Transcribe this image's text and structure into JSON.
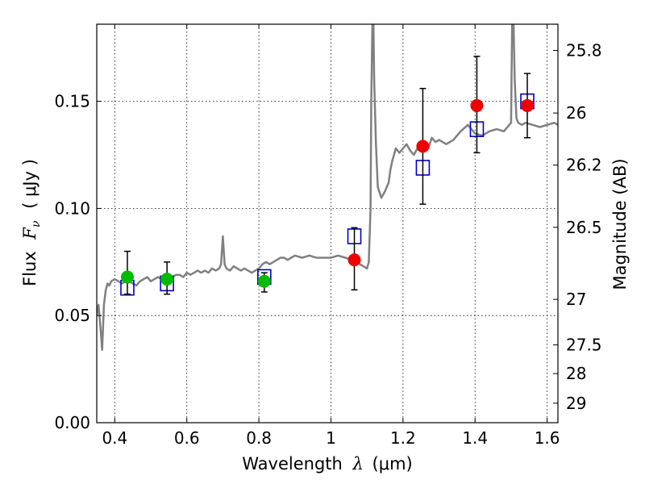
{
  "chart_data": {
    "type": "scatter",
    "xlabel_prefix": "Wavelength",
    "xlabel_symbol": "λ",
    "xlabel_unit": "(μm)",
    "ylabel_prefix": "Flux",
    "ylabel_symbol": "F",
    "ylabel_subscript": "ν",
    "ylabel_unit": "( μJy )",
    "y2label": "Magnitude (AB)",
    "xlim": [
      0.35,
      1.63
    ],
    "ylim": [
      0.0,
      0.186
    ],
    "grid": true,
    "x_ticks": [
      {
        "value": 0.4,
        "label": "0.4"
      },
      {
        "value": 0.6,
        "label": "0.6"
      },
      {
        "value": 0.8,
        "label": "0.8"
      },
      {
        "value": 1.0,
        "label": "1"
      },
      {
        "value": 1.2,
        "label": "1.2"
      },
      {
        "value": 1.4,
        "label": "1.4"
      },
      {
        "value": 1.6,
        "label": "1.6"
      }
    ],
    "y_ticks": [
      {
        "value": 0.0,
        "label": "0.00"
      },
      {
        "value": 0.05,
        "label": "0.05"
      },
      {
        "value": 0.1,
        "label": "0.10"
      },
      {
        "value": 0.15,
        "label": "0.15"
      }
    ],
    "y2_ticks": [
      {
        "value": 25.8,
        "label": "25.8"
      },
      {
        "value": 26.0,
        "label": "26"
      },
      {
        "value": 26.2,
        "label": "26.2"
      },
      {
        "value": 26.5,
        "label": "26.5"
      },
      {
        "value": 27.0,
        "label": "27"
      },
      {
        "value": 27.5,
        "label": "27.5"
      },
      {
        "value": 28.0,
        "label": "28"
      },
      {
        "value": 29.0,
        "label": "29"
      }
    ],
    "series": [
      {
        "kind": "model-spectrum",
        "color": "#808080",
        "x": [
          0.35,
          0.355,
          0.36,
          0.365,
          0.37,
          0.375,
          0.38,
          0.385,
          0.39,
          0.4,
          0.41,
          0.42,
          0.43,
          0.44,
          0.45,
          0.46,
          0.47,
          0.48,
          0.49,
          0.5,
          0.51,
          0.52,
          0.53,
          0.54,
          0.55,
          0.56,
          0.57,
          0.58,
          0.59,
          0.6,
          0.61,
          0.62,
          0.63,
          0.64,
          0.65,
          0.66,
          0.67,
          0.68,
          0.69,
          0.695,
          0.7,
          0.705,
          0.71,
          0.72,
          0.73,
          0.74,
          0.75,
          0.76,
          0.77,
          0.78,
          0.79,
          0.8,
          0.81,
          0.82,
          0.83,
          0.84,
          0.85,
          0.86,
          0.87,
          0.88,
          0.89,
          0.9,
          0.92,
          0.94,
          0.96,
          0.98,
          1.0,
          1.02,
          1.04,
          1.06,
          1.07,
          1.08,
          1.09,
          1.1,
          1.105,
          1.11,
          1.112,
          1.115,
          1.118,
          1.12,
          1.125,
          1.13,
          1.14,
          1.15,
          1.16,
          1.165,
          1.17,
          1.175,
          1.18,
          1.19,
          1.2,
          1.21,
          1.22,
          1.23,
          1.24,
          1.25,
          1.26,
          1.27,
          1.28,
          1.29,
          1.3,
          1.32,
          1.34,
          1.36,
          1.38,
          1.4,
          1.42,
          1.44,
          1.46,
          1.48,
          1.49,
          1.5,
          1.503,
          1.507,
          1.51,
          1.515,
          1.52,
          1.53,
          1.54,
          1.56,
          1.58,
          1.6,
          1.62,
          1.63
        ],
        "y": [
          0.05,
          0.055,
          0.045,
          0.034,
          0.055,
          0.062,
          0.065,
          0.064,
          0.066,
          0.067,
          0.066,
          0.065,
          0.066,
          0.066,
          0.065,
          0.064,
          0.066,
          0.067,
          0.068,
          0.066,
          0.067,
          0.068,
          0.067,
          0.068,
          0.069,
          0.068,
          0.069,
          0.069,
          0.068,
          0.07,
          0.069,
          0.07,
          0.071,
          0.07,
          0.071,
          0.07,
          0.072,
          0.071,
          0.072,
          0.074,
          0.087,
          0.074,
          0.072,
          0.071,
          0.073,
          0.072,
          0.071,
          0.072,
          0.071,
          0.07,
          0.071,
          0.072,
          0.074,
          0.075,
          0.074,
          0.075,
          0.076,
          0.077,
          0.077,
          0.076,
          0.077,
          0.078,
          0.077,
          0.078,
          0.077,
          0.077,
          0.077,
          0.078,
          0.077,
          0.076,
          0.075,
          0.074,
          0.073,
          0.072,
          0.075,
          0.1,
          0.15,
          0.186,
          0.186,
          0.16,
          0.13,
          0.11,
          0.105,
          0.108,
          0.112,
          0.118,
          0.122,
          0.125,
          0.128,
          0.126,
          0.128,
          0.13,
          0.127,
          0.125,
          0.128,
          0.13,
          0.129,
          0.128,
          0.133,
          0.131,
          0.132,
          0.13,
          0.132,
          0.136,
          0.139,
          0.135,
          0.134,
          0.136,
          0.137,
          0.136,
          0.138,
          0.14,
          0.186,
          0.186,
          0.16,
          0.142,
          0.14,
          0.139,
          0.14,
          0.139,
          0.138,
          0.139,
          0.14,
          0.139
        ]
      },
      {
        "kind": "observed-optical",
        "color": "#00bb00",
        "x": [
          0.435,
          0.545,
          0.815
        ],
        "y": [
          0.068,
          0.067,
          0.066
        ],
        "yerr_low": [
          0.06,
          0.06,
          0.061
        ],
        "yerr_high": [
          0.08,
          0.075,
          0.07
        ]
      },
      {
        "kind": "observed-nir",
        "color": "#ee0000",
        "x": [
          1.065,
          1.255,
          1.405,
          1.545
        ],
        "y": [
          0.076,
          0.129,
          0.148,
          0.148
        ],
        "yerr_low": [
          0.062,
          0.102,
          0.126,
          0.133
        ],
        "yerr_high": [
          0.091,
          0.156,
          0.171,
          0.163
        ]
      },
      {
        "kind": "model-photometry",
        "color": "#0000cc",
        "x": [
          0.435,
          0.545,
          0.815,
          1.065,
          1.255,
          1.405,
          1.545
        ],
        "y": [
          0.063,
          0.065,
          0.068,
          0.087,
          0.119,
          0.137,
          0.15
        ]
      }
    ]
  }
}
